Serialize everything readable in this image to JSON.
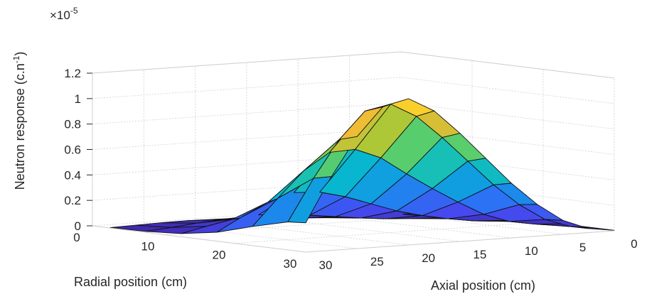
{
  "chart_data": {
    "type": "surface",
    "title": "",
    "xlabel": "Radial position (cm)",
    "ylabel": "Axial position (cm)",
    "zlabel": "Neutron response (c.n",
    "zlabel_exponent": "-1",
    "zlabel_close": ")",
    "multiplier_prefix": "×10",
    "multiplier_exponent": "-5",
    "xlim": [
      0,
      30
    ],
    "ylim": [
      0,
      30
    ],
    "zlim": [
      0,
      1.2
    ],
    "xticks": [
      "0",
      "10",
      "20",
      "30"
    ],
    "yticks": [
      "30",
      "25",
      "20",
      "15",
      "10",
      "5",
      "0"
    ],
    "zticks": [
      "0",
      "0.2",
      "0.4",
      "0.6",
      "0.8",
      "1",
      "1.2"
    ],
    "grid": true,
    "colormap": "parula",
    "radial_points": [
      2.5,
      7.5,
      12.5,
      17.5,
      22.5,
      27.5,
      30
    ],
    "axial_points": [
      0,
      2.5,
      5,
      7.5,
      10,
      12.5,
      15,
      17.5,
      20,
      22.5,
      25,
      27.5,
      30
    ],
    "values": [
      [
        0.0,
        0.001,
        0.002,
        0.003,
        0.004,
        0.005,
        0.006,
        0.008,
        0.012,
        0.016,
        0.014,
        0.008,
        0.003
      ],
      [
        0.001,
        0.002,
        0.004,
        0.008,
        0.012,
        0.018,
        0.03,
        0.04,
        0.055,
        0.06,
        0.045,
        0.025,
        0.008
      ],
      [
        0.001,
        0.004,
        0.01,
        0.018,
        0.03,
        0.05,
        0.075,
        0.1,
        0.12,
        0.13,
        0.11,
        0.07,
        0.025
      ],
      [
        0.002,
        0.008,
        0.02,
        0.05,
        0.09,
        0.14,
        0.21,
        0.28,
        0.33,
        0.34,
        0.28,
        0.18,
        0.07
      ],
      [
        0.003,
        0.015,
        0.05,
        0.12,
        0.23,
        0.35,
        0.48,
        0.62,
        0.7,
        0.69,
        0.56,
        0.36,
        0.15
      ],
      [
        0.004,
        0.03,
        0.1,
        0.23,
        0.4,
        0.6,
        0.8,
        0.98,
        1.09,
        1.05,
        0.84,
        0.55,
        0.22
      ],
      [
        0.004,
        0.032,
        0.11,
        0.25,
        0.43,
        0.64,
        0.85,
        1.04,
        1.15,
        1.1,
        0.88,
        0.58,
        0.23
      ]
    ]
  }
}
